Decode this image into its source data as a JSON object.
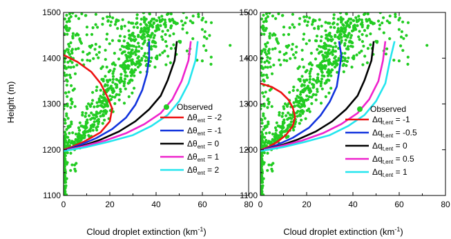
{
  "y_axis_label": "Height (m)",
  "chart_data": [
    {
      "type": "scatter+line",
      "xlabel": "Cloud droplet extinction (km",
      "xlabel_sup": "-1",
      "xlabel_end": ")",
      "ylabel": "Height (m)",
      "xlim": [
        0,
        80
      ],
      "ylim": [
        1100,
        1500
      ],
      "xticks": [
        "0",
        "20",
        "40",
        "60",
        "80"
      ],
      "yticks": [
        "1100",
        "1200",
        "1300",
        "1400",
        "1500"
      ],
      "legend_position": "right",
      "observed": {
        "name": "Observed",
        "color": "#22cc22"
      },
      "series": [
        {
          "name_pre": "Δθ",
          "name_sub": "ent",
          "name_val": " = -2",
          "color": "#ee1111",
          "points": [
            [
              0,
              1407
            ],
            [
              6,
              1392
            ],
            [
              12,
              1370
            ],
            [
              16,
              1345
            ],
            [
              19,
              1315
            ],
            [
              21,
              1290
            ],
            [
              20,
              1262
            ],
            [
              16,
              1238
            ],
            [
              9,
              1218
            ],
            [
              3,
              1205
            ],
            [
              0,
              1200
            ]
          ]
        },
        {
          "name_pre": "Δθ",
          "name_sub": "ent",
          "name_val": " = -1",
          "color": "#1133dd",
          "points": [
            [
              0,
              1198
            ],
            [
              7,
              1210
            ],
            [
              14,
              1225
            ],
            [
              21,
              1245
            ],
            [
              27,
              1270
            ],
            [
              31,
              1298
            ],
            [
              34,
              1330
            ],
            [
              36,
              1365
            ],
            [
              37,
              1400
            ],
            [
              37,
              1437
            ]
          ]
        },
        {
          "name_pre": "Δθ",
          "name_sub": "ent",
          "name_val": " = 0",
          "color": "#000000",
          "points": [
            [
              0,
              1198
            ],
            [
              8,
              1208
            ],
            [
              16,
              1222
            ],
            [
              24,
              1240
            ],
            [
              31,
              1262
            ],
            [
              37,
              1288
            ],
            [
              42,
              1318
            ],
            [
              45,
              1352
            ],
            [
              48,
              1395
            ],
            [
              49,
              1437
            ]
          ]
        },
        {
          "name_pre": "Δθ",
          "name_sub": "ent",
          "name_val": " = 1",
          "color": "#ee22cc",
          "points": [
            [
              0,
              1198
            ],
            [
              9,
              1208
            ],
            [
              18,
              1220
            ],
            [
              27,
              1236
            ],
            [
              35,
              1256
            ],
            [
              42,
              1280
            ],
            [
              47,
              1310
            ],
            [
              51,
              1350
            ],
            [
              54,
              1395
            ],
            [
              55,
              1437
            ]
          ]
        },
        {
          "name_pre": "Δθ",
          "name_sub": "ent",
          "name_val": " = 2",
          "color": "#22e5ee",
          "points": [
            [
              0,
              1197
            ],
            [
              10,
              1206
            ],
            [
              20,
              1218
            ],
            [
              30,
              1232
            ],
            [
              38,
              1252
            ],
            [
              45,
              1276
            ],
            [
              50,
              1306
            ],
            [
              54,
              1345
            ],
            [
              57,
              1395
            ],
            [
              58,
              1437
            ]
          ]
        }
      ]
    },
    {
      "type": "scatter+line",
      "xlabel": "Cloud droplet extinction (km",
      "xlabel_sup": "-1",
      "xlabel_end": ")",
      "xlim": [
        0,
        80
      ],
      "ylim": [
        1100,
        1500
      ],
      "xticks": [
        "0",
        "20",
        "40",
        "60",
        "80"
      ],
      "legend_position": "right",
      "observed": {
        "name": "Observed",
        "color": "#22cc22"
      },
      "series": [
        {
          "name_pre": "Δq",
          "name_sub": "t,ent",
          "name_val": " = -1",
          "color": "#ee1111",
          "points": [
            [
              0,
              1345
            ],
            [
              5,
              1337
            ],
            [
              9,
              1325
            ],
            [
              12,
              1310
            ],
            [
              14,
              1292
            ],
            [
              15,
              1272
            ],
            [
              14,
              1252
            ],
            [
              11,
              1232
            ],
            [
              7,
              1216
            ],
            [
              3,
              1205
            ],
            [
              0,
              1199
            ]
          ]
        },
        {
          "name_pre": "Δq",
          "name_sub": "t,ent",
          "name_val": " = -0.5",
          "color": "#1133dd",
          "points": [
            [
              0,
              1198
            ],
            [
              7,
              1210
            ],
            [
              14,
              1226
            ],
            [
              21,
              1248
            ],
            [
              26,
              1275
            ],
            [
              30,
              1305
            ],
            [
              33,
              1338
            ],
            [
              34,
              1370
            ],
            [
              35,
              1405
            ],
            [
              34,
              1437
            ]
          ]
        },
        {
          "name_pre": "Δq",
          "name_sub": "t,ent",
          "name_val": " = 0",
          "color": "#000000",
          "points": [
            [
              0,
              1198
            ],
            [
              8,
              1208
            ],
            [
              16,
              1222
            ],
            [
              24,
              1240
            ],
            [
              31,
              1262
            ],
            [
              37,
              1288
            ],
            [
              42,
              1318
            ],
            [
              45,
              1352
            ],
            [
              48,
              1395
            ],
            [
              49,
              1437
            ]
          ]
        },
        {
          "name_pre": "Δq",
          "name_sub": "t,ent",
          "name_val": " = 0.5",
          "color": "#ee22cc",
          "points": [
            [
              0,
              1198
            ],
            [
              9,
              1208
            ],
            [
              18,
              1220
            ],
            [
              27,
              1236
            ],
            [
              35,
              1256
            ],
            [
              42,
              1280
            ],
            [
              47,
              1310
            ],
            [
              51,
              1350
            ],
            [
              53,
              1395
            ],
            [
              54,
              1437
            ]
          ]
        },
        {
          "name_pre": "Δq",
          "name_sub": "t,ent",
          "name_val": " = 1",
          "color": "#22e5ee",
          "points": [
            [
              0,
              1197
            ],
            [
              10,
              1206
            ],
            [
              20,
              1218
            ],
            [
              30,
              1232
            ],
            [
              38,
              1252
            ],
            [
              45,
              1276
            ],
            [
              50,
              1306
            ],
            [
              54,
              1345
            ],
            [
              56,
              1395
            ],
            [
              58,
              1437
            ]
          ]
        }
      ]
    }
  ]
}
